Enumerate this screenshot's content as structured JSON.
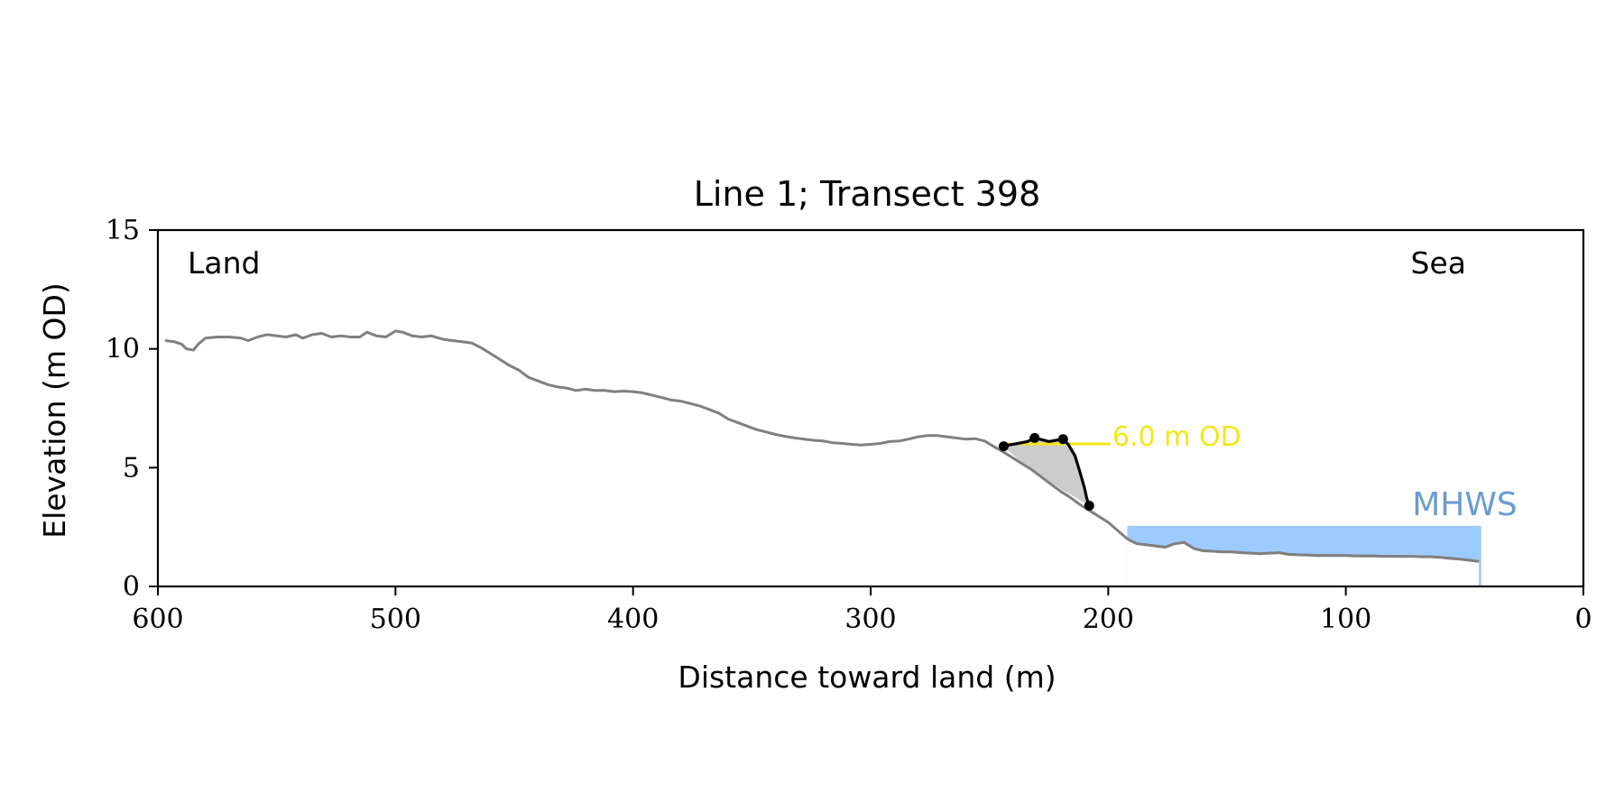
{
  "chart_data": {
    "type": "line",
    "title": "Line 1; Transect 398",
    "xlabel": "Distance toward land (m)",
    "ylabel": "Elevation (m OD)",
    "xlim": [
      600,
      0
    ],
    "ylim": [
      0,
      15
    ],
    "x_ticks": [
      600,
      500,
      400,
      300,
      200,
      100,
      0
    ],
    "y_ticks": [
      0,
      5,
      10,
      15
    ],
    "grid": false,
    "corner_labels": {
      "left": "Land",
      "right": "Sea"
    },
    "colors": {
      "profile": "#808080",
      "cliff": "#000000",
      "cliff_fill": "#cccccc",
      "threshold": "#f5e616",
      "mhws": "#9ecbff",
      "mhws_text": "#6b9ccc"
    },
    "profile": {
      "x": [
        597,
        593,
        590,
        588,
        585,
        583,
        580,
        575,
        570,
        565,
        562,
        558,
        554,
        550,
        546,
        542,
        539,
        535,
        531,
        527,
        523,
        519,
        515,
        512,
        508,
        504,
        500,
        497,
        493,
        489,
        485,
        480,
        476,
        472,
        468,
        464,
        460,
        456,
        452,
        448,
        444,
        440,
        436,
        432,
        428,
        424,
        420,
        416,
        412,
        408,
        404,
        400,
        396,
        392,
        388,
        384,
        380,
        376,
        372,
        368,
        364,
        360,
        356,
        352,
        348,
        344,
        340,
        336,
        332,
        328,
        324,
        320,
        316,
        312,
        308,
        304,
        300,
        296,
        292,
        288,
        284,
        280,
        276,
        272,
        268,
        264,
        260,
        256,
        252,
        248,
        244,
        240,
        236,
        232,
        228,
        224,
        220,
        216,
        212,
        208,
        204,
        200,
        196,
        192,
        188,
        184,
        180,
        176,
        172,
        168,
        164,
        160,
        156,
        152,
        148,
        144,
        140,
        136,
        132,
        128,
        124,
        120,
        116,
        112,
        108,
        104,
        100,
        96,
        92,
        88,
        84,
        80,
        76,
        72,
        68,
        64,
        60,
        56,
        52,
        48,
        44
      ],
      "y": [
        10.35,
        10.3,
        10.2,
        10.0,
        9.95,
        10.2,
        10.45,
        10.5,
        10.5,
        10.45,
        10.35,
        10.5,
        10.6,
        10.55,
        10.5,
        10.6,
        10.45,
        10.6,
        10.65,
        10.5,
        10.55,
        10.5,
        10.5,
        10.7,
        10.55,
        10.5,
        10.75,
        10.7,
        10.55,
        10.5,
        10.55,
        10.4,
        10.35,
        10.3,
        10.25,
        10.05,
        9.8,
        9.55,
        9.3,
        9.1,
        8.8,
        8.65,
        8.5,
        8.4,
        8.35,
        8.25,
        8.3,
        8.25,
        8.25,
        8.2,
        8.22,
        8.2,
        8.15,
        8.05,
        7.95,
        7.85,
        7.8,
        7.7,
        7.6,
        7.45,
        7.3,
        7.05,
        6.9,
        6.75,
        6.6,
        6.5,
        6.4,
        6.32,
        6.25,
        6.2,
        6.15,
        6.12,
        6.05,
        6.02,
        5.98,
        5.95,
        5.98,
        6.02,
        6.1,
        6.12,
        6.2,
        6.3,
        6.35,
        6.35,
        6.3,
        6.25,
        6.2,
        6.22,
        6.12,
        5.88,
        5.65,
        5.4,
        5.15,
        4.9,
        4.6,
        4.3,
        4.0,
        3.75,
        3.45,
        3.2,
        2.95,
        2.7,
        2.35,
        2.0,
        1.8,
        1.75,
        1.7,
        1.65,
        1.8,
        1.85,
        1.6,
        1.5,
        1.48,
        1.45,
        1.45,
        1.42,
        1.4,
        1.38,
        1.4,
        1.42,
        1.35,
        1.33,
        1.32,
        1.3,
        1.3,
        1.3,
        1.3,
        1.28,
        1.28,
        1.28,
        1.27,
        1.27,
        1.26,
        1.26,
        1.25,
        1.25,
        1.22,
        1.18,
        1.15,
        1.1,
        1.05
      ]
    },
    "cliff": {
      "x": [
        244,
        242,
        238,
        234,
        231,
        228,
        225,
        222,
        219,
        217,
        214,
        212,
        210,
        209,
        208
      ],
      "y": [
        5.9,
        5.95,
        6.02,
        6.1,
        6.25,
        6.18,
        6.1,
        6.15,
        6.2,
        6.0,
        5.5,
        4.85,
        4.15,
        3.7,
        3.4
      ]
    },
    "cliff_points": {
      "x": [
        244,
        231,
        219,
        208
      ],
      "y": [
        5.9,
        6.25,
        6.2,
        3.4
      ]
    },
    "cliff_area": {
      "x": [
        244,
        242,
        238,
        234,
        231,
        228,
        225,
        222,
        219,
        217,
        214,
        212,
        210,
        209,
        208,
        214,
        220,
        226,
        232,
        238,
        244
      ],
      "y": [
        5.9,
        5.95,
        6.02,
        6.1,
        6.25,
        6.18,
        6.1,
        6.15,
        6.2,
        6.0,
        5.5,
        4.85,
        4.15,
        3.7,
        3.4,
        3.75,
        4.1,
        4.5,
        4.9,
        5.35,
        5.9
      ]
    },
    "threshold": {
      "value": 6.0,
      "x_start": 244,
      "x_end": 199,
      "label": "6.0 m OD"
    },
    "mhws": {
      "label": "MHWS",
      "level": 2.55,
      "x_start": 192,
      "x_end": 43
    }
  }
}
